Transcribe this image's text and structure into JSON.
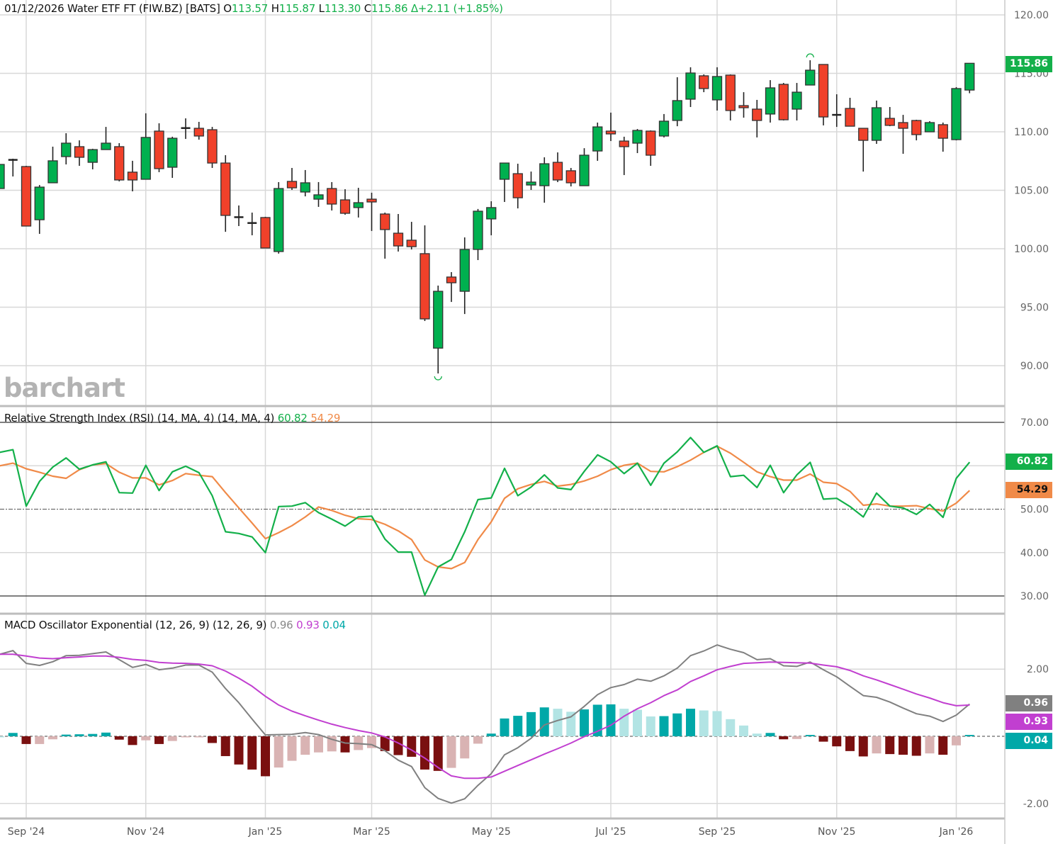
{
  "header": {
    "date": "01/12/2026",
    "name": "Water ETF FT (FIW.BZ) [BATS]",
    "open_label": "O",
    "open": "113.57",
    "high_label": "H",
    "high": "115.87",
    "low_label": "L",
    "low": "113.30",
    "close_label": "C",
    "close": "115.86",
    "change": "Δ+2.11 (+1.85%)"
  },
  "logo": "barchart",
  "rsi_legend": {
    "title": "Relative Strength Index (RSI) (14, MA, 4)  (14, MA, 4)",
    "rsi": "60.82",
    "ma": "54.29"
  },
  "macd_legend": {
    "title": "MACD Oscillator Exponential (12, 26, 9)  (12, 26, 9)",
    "macd": "0.96",
    "signal": "0.93",
    "hist": "0.04"
  },
  "badges": {
    "price": "115.86",
    "rsi": "60.82",
    "rsi_ma": "54.29",
    "macd": "0.96",
    "signal": "0.93",
    "hist": "0.04"
  },
  "colors": {
    "up": "#00b04f",
    "down": "#f0412a",
    "rsi": "#13b04a",
    "rsi_ma": "#f08a48",
    "macd": "#808080",
    "signal": "#c13fd0",
    "hist_up_strong": "#00a8a8",
    "hist_up_weak": "#b2e4e4",
    "hist_dn_strong": "#7a1010",
    "hist_dn_weak": "#d9b3b3"
  },
  "chart_data": [
    {
      "type": "candlestick",
      "title": "Water ETF FT (FIW.BZ) weekly",
      "ylim": [
        87,
        121.5
      ],
      "y_ticks": [
        "90.00",
        "95.00",
        "100.00",
        "105.00",
        "110.00",
        "115.00",
        "120.00"
      ],
      "x_ticks": [
        {
          "label": "Sep '24",
          "bar": 2
        },
        {
          "label": "Nov '24",
          "bar": 11
        },
        {
          "label": "Jan '25",
          "bar": 20
        },
        {
          "label": "Mar '25",
          "bar": 28
        },
        {
          "label": "May '25",
          "bar": 37
        },
        {
          "label": "Jul '25",
          "bar": 46
        },
        {
          "label": "Sep '25",
          "bar": 54
        },
        {
          "label": "Nov '25",
          "bar": 63
        },
        {
          "label": "Jan '26",
          "bar": 72
        }
      ],
      "ohlc": [
        [
          105.15,
          107.21,
          105.15,
          107.21
        ],
        [
          107.6,
          107.7,
          106.18,
          107.55
        ],
        [
          107.03,
          107.09,
          101.94,
          101.94
        ],
        [
          102.48,
          105.45,
          101.27,
          105.27
        ],
        [
          105.64,
          108.73,
          105.64,
          107.52
        ],
        [
          107.88,
          109.88,
          107.21,
          109.03
        ],
        [
          108.73,
          109.27,
          107.09,
          107.82
        ],
        [
          107.39,
          108.55,
          106.79,
          108.48
        ],
        [
          108.48,
          110.42,
          108.48,
          109.03
        ],
        [
          108.73,
          109.03,
          105.76,
          105.88
        ],
        [
          106.55,
          107.52,
          104.91,
          105.88
        ],
        [
          105.94,
          111.58,
          105.94,
          109.52
        ],
        [
          110.06,
          110.73,
          106.55,
          106.85
        ],
        [
          106.97,
          109.58,
          106.06,
          109.45
        ],
        [
          110.32,
          111.15,
          109.39,
          110.3
        ],
        [
          110.3,
          110.85,
          109.33,
          109.64
        ],
        [
          110.18,
          110.42,
          106.91,
          107.33
        ],
        [
          107.33,
          108.0,
          101.45,
          102.85
        ],
        [
          102.7,
          103.7,
          101.94,
          102.67
        ],
        [
          102.2,
          103.09,
          101.15,
          102.18
        ],
        [
          102.67,
          102.73,
          100.06,
          100.06
        ],
        [
          99.76,
          105.7,
          99.58,
          105.15
        ],
        [
          105.76,
          106.91,
          105.03,
          105.21
        ],
        [
          104.85,
          106.73,
          104.48,
          105.64
        ],
        [
          104.24,
          105.7,
          103.58,
          104.61
        ],
        [
          105.15,
          105.7,
          103.27,
          103.82
        ],
        [
          104.18,
          105.09,
          102.91,
          103.03
        ],
        [
          103.52,
          105.21,
          102.67,
          103.94
        ],
        [
          104.24,
          104.79,
          101.52,
          104.0
        ],
        [
          102.97,
          103.09,
          99.15,
          101.64
        ],
        [
          101.33,
          102.97,
          99.76,
          100.24
        ],
        [
          100.73,
          102.3,
          99.94,
          100.18
        ],
        [
          99.58,
          102.0,
          93.82,
          94.0
        ],
        [
          91.5,
          96.85,
          89.33,
          96.36
        ],
        [
          97.58,
          98.0,
          95.45,
          97.09
        ],
        [
          96.36,
          100.97,
          94.42,
          99.94
        ],
        [
          99.94,
          103.4,
          99.03,
          103.21
        ],
        [
          102.55,
          104.06,
          101.15,
          103.52
        ],
        [
          105.94,
          107.33,
          104.0,
          107.33
        ],
        [
          106.42,
          107.27,
          103.45,
          104.36
        ],
        [
          105.45,
          106.6,
          105.03,
          105.7
        ],
        [
          105.39,
          107.82,
          103.94,
          107.27
        ],
        [
          107.39,
          108.24,
          105.7,
          105.88
        ],
        [
          106.67,
          106.91,
          105.33,
          105.64
        ],
        [
          105.39,
          108.6,
          105.39,
          108.0
        ],
        [
          108.36,
          110.79,
          107.52,
          110.42
        ],
        [
          110.06,
          111.64,
          109.21,
          109.82
        ],
        [
          109.21,
          109.58,
          106.3,
          108.73
        ],
        [
          109.03,
          110.24,
          108.18,
          110.12
        ],
        [
          110.06,
          110.12,
          107.09,
          108.0
        ],
        [
          109.64,
          111.52,
          109.52,
          110.91
        ],
        [
          110.97,
          114.67,
          110.48,
          112.67
        ],
        [
          112.79,
          115.52,
          112.12,
          115.03
        ],
        [
          114.79,
          114.91,
          113.39,
          113.7
        ],
        [
          112.73,
          115.52,
          111.82,
          114.73
        ],
        [
          114.85,
          114.91,
          110.97,
          111.82
        ],
        [
          112.24,
          113.39,
          111.21,
          112.06
        ],
        [
          111.94,
          112.73,
          109.52,
          110.97
        ],
        [
          111.52,
          114.42,
          110.79,
          113.76
        ],
        [
          114.06,
          114.18,
          110.97,
          111.03
        ],
        [
          111.94,
          114.18,
          110.97,
          113.39
        ],
        [
          114.0,
          116.12,
          114.0,
          115.27
        ],
        [
          115.76,
          115.76,
          110.55,
          111.27
        ],
        [
          111.45,
          113.21,
          110.42,
          111.4
        ],
        [
          112.0,
          112.91,
          110.48,
          110.48
        ],
        [
          110.3,
          110.3,
          106.6,
          109.27
        ],
        [
          109.27,
          112.67,
          108.97,
          112.06
        ],
        [
          111.15,
          112.12,
          110.48,
          110.55
        ],
        [
          110.79,
          111.45,
          108.12,
          110.3
        ],
        [
          110.97,
          111.03,
          109.27,
          109.76
        ],
        [
          110.0,
          110.91,
          110.0,
          110.79
        ],
        [
          110.61,
          110.79,
          108.3,
          109.45
        ],
        [
          109.33,
          113.82,
          109.27,
          113.7
        ],
        [
          113.57,
          115.87,
          113.3,
          115.86
        ]
      ],
      "high_marker_bar": 61,
      "low_marker_bar": 33
    },
    {
      "type": "line",
      "title": "Relative Strength Index (RSI) (14, MA, 4)",
      "ylim": [
        30,
        70
      ],
      "y_ticks": [
        "30.00",
        "40.00",
        "50.00",
        "70.00"
      ],
      "series": [
        {
          "name": "RSI",
          "values": [
            63.1,
            63.7,
            50.7,
            56.4,
            59.7,
            61.8,
            59.2,
            60.2,
            60.9,
            53.8,
            53.7,
            60.1,
            54.3,
            58.6,
            59.9,
            58.4,
            53.1,
            44.8,
            44.4,
            43.6,
            40.0,
            50.6,
            50.7,
            51.5,
            49.2,
            47.7,
            46.1,
            48.2,
            48.4,
            43.1,
            40.1,
            40.1,
            30.2,
            36.7,
            38.4,
            44.8,
            52.2,
            52.6,
            59.4,
            53.1,
            55.1,
            57.9,
            54.9,
            54.5,
            58.7,
            62.5,
            60.9,
            58.2,
            60.6,
            55.5,
            60.6,
            63.2,
            66.5,
            63.1,
            64.6,
            57.5,
            57.8,
            55.0,
            60.1,
            53.8,
            57.9,
            60.8,
            52.3,
            52.5,
            50.6,
            48.2,
            53.7,
            50.7,
            50.3,
            48.8,
            51.1,
            48.1,
            57.1,
            60.82
          ]
        },
        {
          "name": "MA",
          "values": [
            60.0,
            60.6,
            59.3,
            58.5,
            57.6,
            57.1,
            59.1,
            60.2,
            60.5,
            58.5,
            57.2,
            57.2,
            55.6,
            56.6,
            58.2,
            57.8,
            57.5,
            53.8,
            50.3,
            46.8,
            43.2,
            44.6,
            46.2,
            48.2,
            50.5,
            49.7,
            48.6,
            47.8,
            47.6,
            46.5,
            45.0,
            43.0,
            38.3,
            36.7,
            36.3,
            37.7,
            43.0,
            47.1,
            52.5,
            54.7,
            55.7,
            56.4,
            55.3,
            55.7,
            56.5,
            57.6,
            59.1,
            60.1,
            60.6,
            58.7,
            58.6,
            59.8,
            61.3,
            63.1,
            64.5,
            62.9,
            60.8,
            58.6,
            57.5,
            56.7,
            56.7,
            58.1,
            56.2,
            55.9,
            54.1,
            50.9,
            51.2,
            50.7,
            50.7,
            50.8,
            50.1,
            49.6,
            51.4,
            54.29
          ]
        }
      ]
    },
    {
      "type": "line+bar",
      "title": "MACD Oscillator Exponential (12, 26, 9)",
      "ylim": [
        -2.2,
        2.8
      ],
      "y_ticks": [
        "-2.00",
        "2.00"
      ],
      "series": [
        {
          "name": "MACD",
          "values": [
            2.44,
            2.55,
            2.17,
            2.11,
            2.22,
            2.4,
            2.41,
            2.46,
            2.51,
            2.28,
            2.05,
            2.14,
            1.98,
            2.03,
            2.12,
            2.12,
            1.91,
            1.42,
            1.0,
            0.51,
            0.04,
            0.05,
            0.06,
            0.11,
            0.05,
            -0.09,
            -0.2,
            -0.22,
            -0.25,
            -0.43,
            -0.71,
            -0.9,
            -1.53,
            -1.85,
            -1.99,
            -1.86,
            -1.46,
            -1.11,
            -0.55,
            -0.34,
            -0.06,
            0.34,
            0.47,
            0.58,
            0.89,
            1.24,
            1.45,
            1.54,
            1.7,
            1.64,
            1.8,
            2.03,
            2.4,
            2.54,
            2.72,
            2.59,
            2.49,
            2.28,
            2.31,
            2.1,
            2.08,
            2.21,
            1.98,
            1.77,
            1.49,
            1.21,
            1.16,
            1.02,
            0.84,
            0.67,
            0.6,
            0.44,
            0.63,
            0.96
          ]
        },
        {
          "name": "Signal",
          "values": [
            2.44,
            2.44,
            2.39,
            2.33,
            2.31,
            2.34,
            2.36,
            2.39,
            2.39,
            2.35,
            2.29,
            2.26,
            2.2,
            2.18,
            2.17,
            2.15,
            2.1,
            1.94,
            1.73,
            1.49,
            1.19,
            0.93,
            0.75,
            0.61,
            0.48,
            0.36,
            0.26,
            0.17,
            0.1,
            -0.02,
            -0.2,
            -0.41,
            -0.65,
            -0.93,
            -1.18,
            -1.25,
            -1.25,
            -1.21,
            -1.04,
            -0.87,
            -0.7,
            -0.53,
            -0.37,
            -0.2,
            -0.01,
            0.15,
            0.33,
            0.6,
            0.82,
            1.0,
            1.21,
            1.38,
            1.63,
            1.8,
            1.98,
            2.08,
            2.17,
            2.19,
            2.21,
            2.2,
            2.19,
            2.18,
            2.12,
            2.07,
            1.96,
            1.8,
            1.68,
            1.54,
            1.4,
            1.26,
            1.14,
            1.0,
            0.91,
            0.93
          ]
        },
        {
          "name": "Histogram",
          "values": [
            0,
            0.1,
            -0.23,
            -0.23,
            -0.09,
            0.05,
            0.06,
            0.07,
            0.11,
            -0.1,
            -0.26,
            -0.12,
            -0.23,
            -0.14,
            -0.03,
            -0.03,
            -0.2,
            -0.59,
            -0.84,
            -0.99,
            -1.19,
            -0.93,
            -0.73,
            -0.55,
            -0.48,
            -0.45,
            -0.48,
            -0.41,
            -0.35,
            -0.44,
            -0.56,
            -0.61,
            -0.99,
            -1.03,
            -0.94,
            -0.66,
            -0.22,
            0.08,
            0.53,
            0.61,
            0.72,
            0.86,
            0.82,
            0.73,
            0.8,
            0.94,
            0.95,
            0.82,
            0.79,
            0.59,
            0.6,
            0.68,
            0.82,
            0.77,
            0.75,
            0.51,
            0.32,
            0.08,
            0.1,
            -0.09,
            -0.08,
            0.04,
            -0.16,
            -0.3,
            -0.44,
            -0.6,
            -0.51,
            -0.53,
            -0.55,
            -0.58,
            -0.51,
            -0.55,
            -0.27,
            0.04
          ]
        }
      ]
    }
  ]
}
